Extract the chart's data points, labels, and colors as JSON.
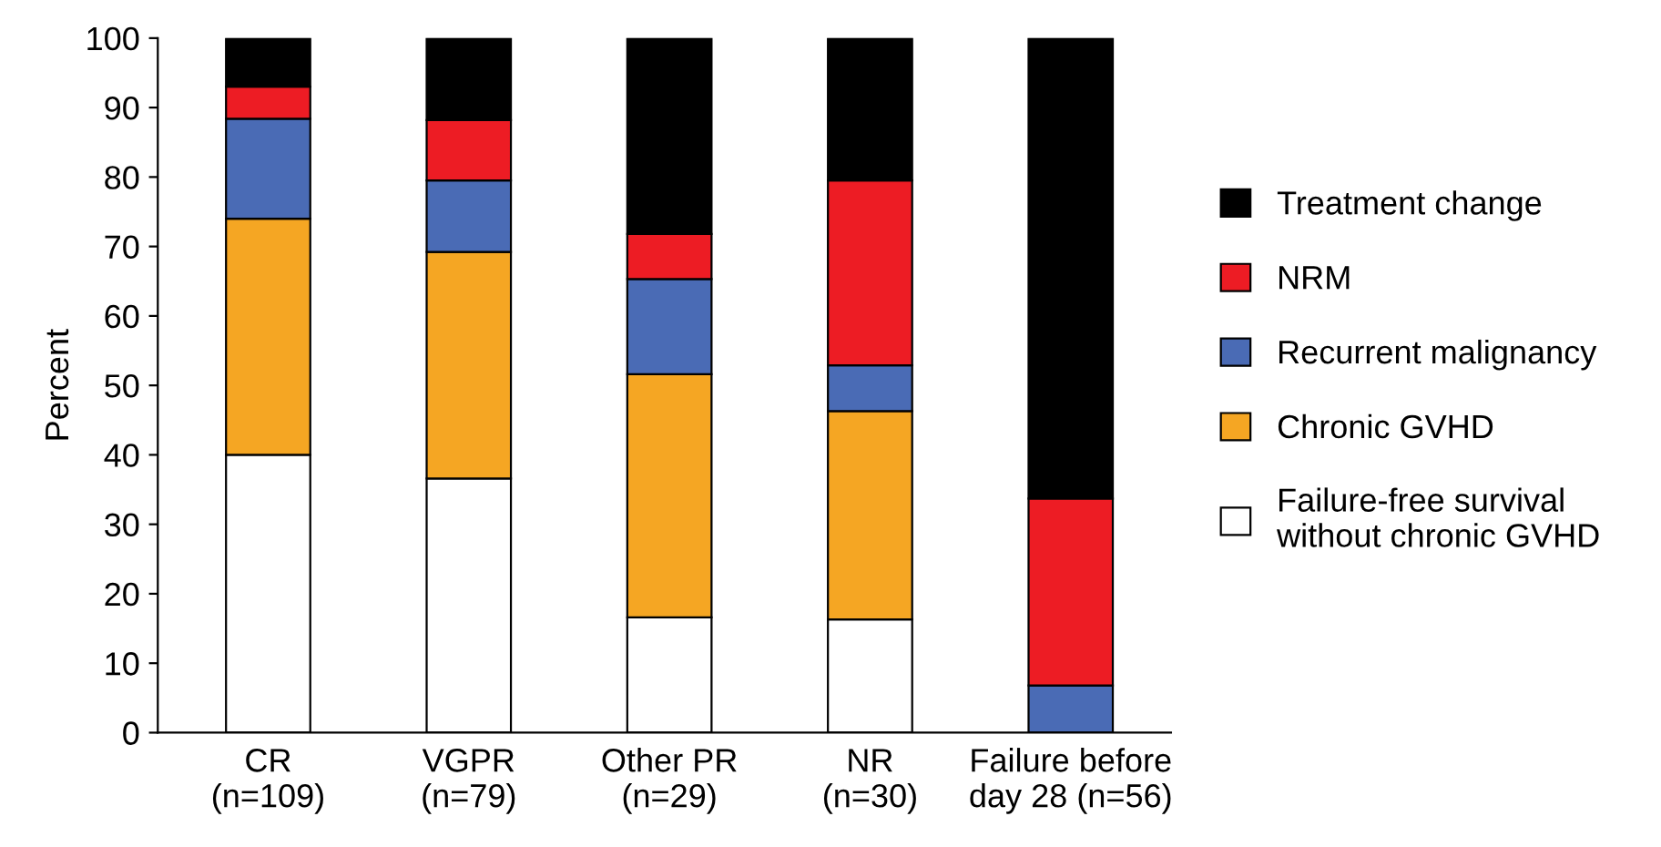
{
  "chart_data": {
    "type": "bar",
    "stacked": true,
    "ylabel": "Percent",
    "ylim": [
      0,
      100
    ],
    "yticks": [
      0,
      10,
      20,
      30,
      40,
      50,
      60,
      70,
      80,
      90,
      100
    ],
    "grid": false,
    "legend": "right",
    "categories": [
      "CR\n(n=109)",
      "VGPR\n(n=79)",
      "Other PR\n(n=29)",
      "NR\n(n=30)",
      "Failure before\nday 28 (n=56)"
    ],
    "series": [
      {
        "name": "Failure-free survival\nwithout chronic GVHD",
        "color": "#ffffff",
        "values": [
          40,
          36.6,
          16.6,
          16.3,
          0
        ]
      },
      {
        "name": "Chronic GVHD",
        "color": "#f5a623",
        "values": [
          34,
          32.6,
          35,
          30,
          0
        ]
      },
      {
        "name": "Recurrent malignancy",
        "color": "#4a6bb5",
        "values": [
          14.4,
          10.3,
          13.7,
          6.6,
          6.8
        ]
      },
      {
        "name": "NRM",
        "color": "#ed1c24",
        "values": [
          4.6,
          8.7,
          6.5,
          26.6,
          26.9
        ]
      },
      {
        "name": "Treatment change",
        "color": "#000000",
        "values": [
          7,
          11.8,
          28.2,
          20.5,
          66.3
        ]
      }
    ]
  }
}
